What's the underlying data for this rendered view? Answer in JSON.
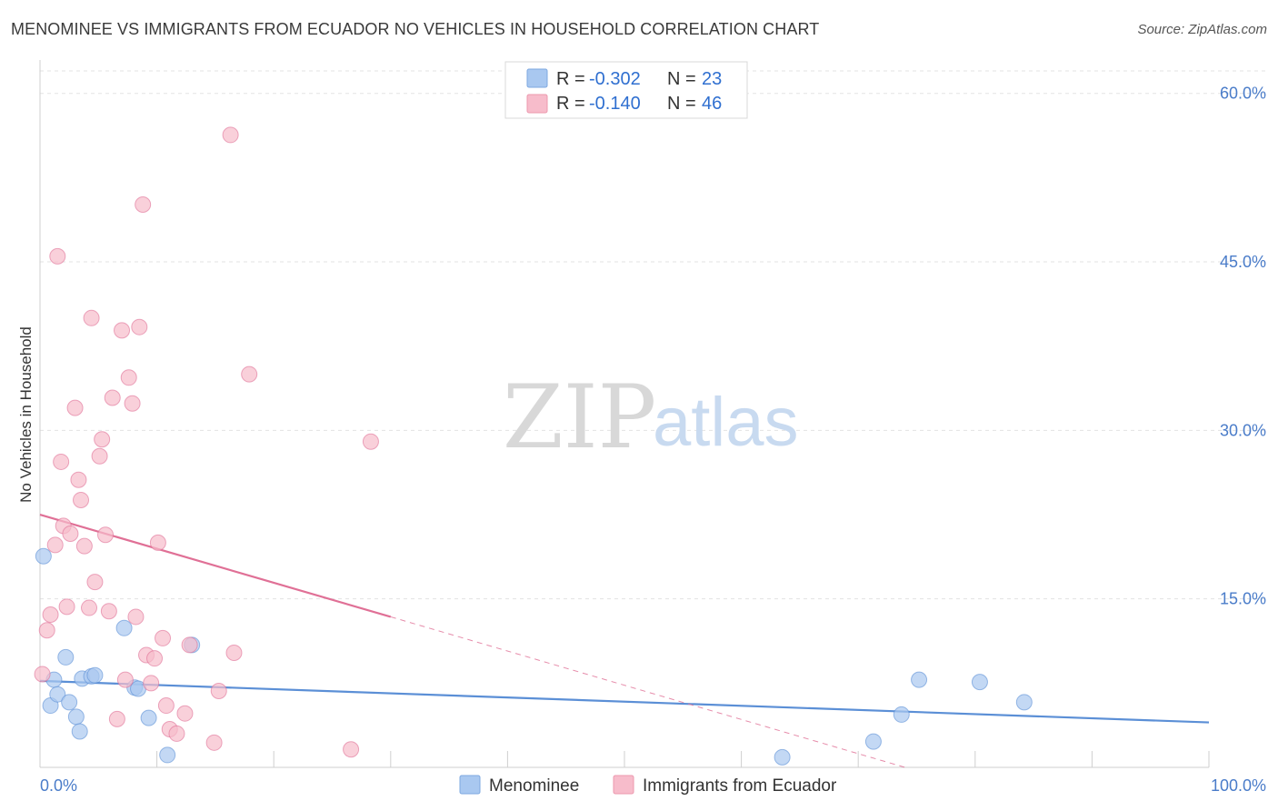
{
  "header": {
    "title": "MENOMINEE VS IMMIGRANTS FROM ECUADOR NO VEHICLES IN HOUSEHOLD CORRELATION CHART",
    "source": "Source: ZipAtlas.com"
  },
  "watermark": {
    "zip": "ZIP",
    "atlas": "atlas"
  },
  "legend": {
    "rows": [
      {
        "r_label": "R =",
        "r_value": "-0.302",
        "n_label": "N =",
        "n_value": "23",
        "color": "#a9c8f0"
      },
      {
        "r_label": "R =",
        "r_value": "-0.140",
        "n_label": "N =",
        "n_value": "46",
        "color": "#f7bccb"
      }
    ]
  },
  "bottom_legend": [
    {
      "label": "Menominee",
      "color": "#a9c8f0"
    },
    {
      "label": "Immigrants from Ecuador",
      "color": "#f7bccb"
    }
  ],
  "chart_data": {
    "type": "scatter",
    "xlabel": "",
    "ylabel": "No Vehicles in Household",
    "xlim": [
      0,
      100
    ],
    "ylim": [
      0,
      62
    ],
    "x_tick_labels": [
      {
        "value": 0,
        "label": "0.0%"
      },
      {
        "value": 100,
        "label": "100.0%"
      }
    ],
    "y_tick_labels": [
      {
        "value": 15,
        "label": "15.0%"
      },
      {
        "value": 30,
        "label": "30.0%"
      },
      {
        "value": 45,
        "label": "45.0%"
      },
      {
        "value": 60,
        "label": "60.0%"
      }
    ],
    "grid": true,
    "series": [
      {
        "name": "Menominee",
        "color": "#5b8fd6",
        "fill": "#a9c8f0",
        "points": [
          [
            0.3,
            18.8
          ],
          [
            0.9,
            5.5
          ],
          [
            1.2,
            7.8
          ],
          [
            1.5,
            6.5
          ],
          [
            2.2,
            9.8
          ],
          [
            2.5,
            5.8
          ],
          [
            3.1,
            4.5
          ],
          [
            3.4,
            3.2
          ],
          [
            3.6,
            7.9
          ],
          [
            4.4,
            8.1
          ],
          [
            4.7,
            8.2
          ],
          [
            7.2,
            12.4
          ],
          [
            8.1,
            7.1
          ],
          [
            8.4,
            7.0
          ],
          [
            9.3,
            4.4
          ],
          [
            10.9,
            1.1
          ],
          [
            13.0,
            10.9
          ],
          [
            71.3,
            2.3
          ],
          [
            73.7,
            4.7
          ],
          [
            75.2,
            7.8
          ],
          [
            80.4,
            7.6
          ],
          [
            84.2,
            5.8
          ],
          [
            63.5,
            0.9
          ]
        ],
        "trend": {
          "x": [
            0,
            100
          ],
          "y": [
            7.7,
            4.0
          ],
          "style": "solid"
        }
      },
      {
        "name": "Immigrants from Ecuador",
        "color": "#e07096",
        "fill": "#f7bccb",
        "points": [
          [
            0.2,
            8.3
          ],
          [
            0.6,
            12.2
          ],
          [
            0.9,
            13.6
          ],
          [
            1.3,
            19.8
          ],
          [
            1.5,
            45.5
          ],
          [
            1.8,
            27.2
          ],
          [
            2.0,
            21.5
          ],
          [
            2.3,
            14.3
          ],
          [
            2.6,
            20.8
          ],
          [
            3.0,
            32.0
          ],
          [
            3.3,
            25.6
          ],
          [
            3.5,
            23.8
          ],
          [
            3.8,
            19.7
          ],
          [
            4.2,
            14.2
          ],
          [
            4.4,
            40.0
          ],
          [
            4.7,
            16.5
          ],
          [
            5.1,
            27.7
          ],
          [
            5.3,
            29.2
          ],
          [
            5.6,
            20.7
          ],
          [
            5.9,
            13.9
          ],
          [
            6.2,
            32.9
          ],
          [
            6.6,
            4.3
          ],
          [
            7.0,
            38.9
          ],
          [
            7.3,
            7.8
          ],
          [
            7.6,
            34.7
          ],
          [
            7.9,
            32.4
          ],
          [
            8.2,
            13.4
          ],
          [
            8.5,
            39.2
          ],
          [
            8.8,
            50.1
          ],
          [
            9.1,
            10.0
          ],
          [
            9.5,
            7.5
          ],
          [
            9.8,
            9.7
          ],
          [
            10.1,
            20.0
          ],
          [
            10.5,
            11.5
          ],
          [
            10.8,
            5.5
          ],
          [
            11.1,
            3.4
          ],
          [
            11.7,
            3.0
          ],
          [
            12.4,
            4.8
          ],
          [
            12.8,
            10.9
          ],
          [
            14.9,
            2.2
          ],
          [
            15.3,
            6.8
          ],
          [
            16.3,
            56.3
          ],
          [
            16.6,
            10.2
          ],
          [
            17.9,
            35.0
          ],
          [
            26.6,
            1.6
          ],
          [
            28.3,
            29.0
          ]
        ],
        "trend": {
          "x": [
            0,
            30
          ],
          "y": [
            22.5,
            13.4
          ],
          "style": "solid"
        },
        "trend_extension": {
          "x": [
            30,
            74
          ],
          "y": [
            13.4,
            0
          ],
          "style": "dashed"
        }
      }
    ],
    "legend_position": "top-center"
  }
}
